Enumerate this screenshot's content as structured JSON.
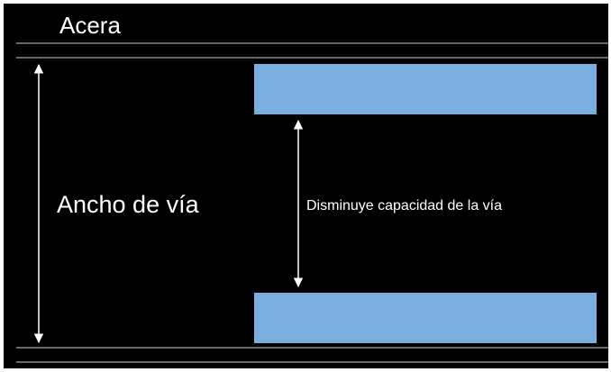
{
  "labels": {
    "sidewalk": "Acera",
    "road_width": "Ancho de vía",
    "capacity_note": "Disminuye capacidad de la vía"
  },
  "colors": {
    "background": "#000000",
    "lines": "#ffffff",
    "block_fill": "#7aaedf",
    "text": "#ffffff"
  }
}
